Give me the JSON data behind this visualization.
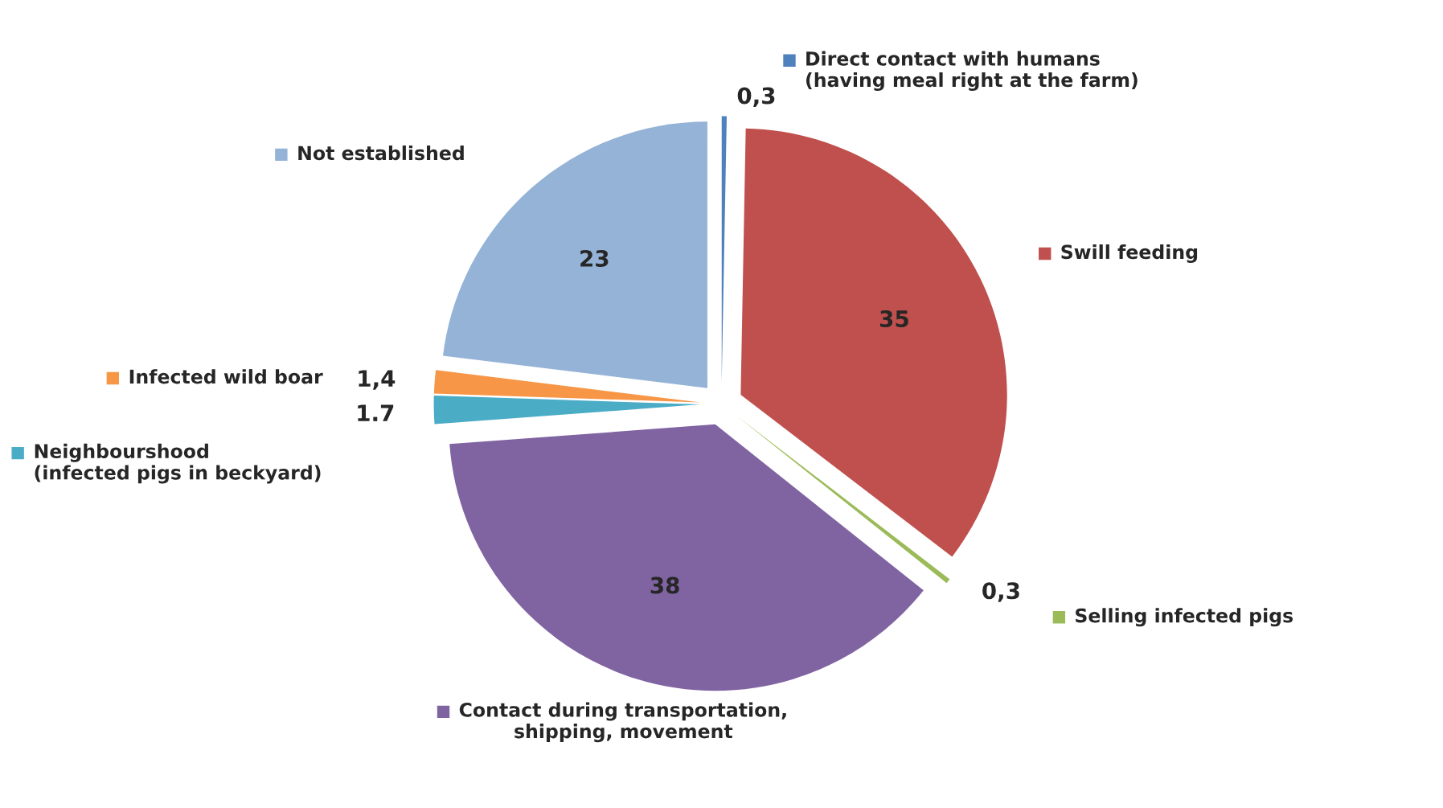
{
  "chart_data": {
    "type": "pie",
    "categories": [
      "Direct contact with humans\n(having meal right at the farm)",
      "Swill feeding",
      "Selling infected pigs",
      "Contact during transportation,\nshipping, movement",
      "Neighbourshood\n(infected pigs in beckyard)",
      "Infected wild boar",
      "Not established"
    ],
    "values": [
      0.3,
      35,
      0.3,
      38,
      1.7,
      1.4,
      23
    ],
    "value_labels": [
      "0,3",
      "35",
      "0,3",
      "38",
      "1.7",
      "1,4",
      "23"
    ],
    "colors": [
      "#4f81bd",
      "#c0504d",
      "#9bbb59",
      "#8064a2",
      "#4bacc6",
      "#f79646",
      "#95b3d7"
    ],
    "legend": "top left"
  }
}
